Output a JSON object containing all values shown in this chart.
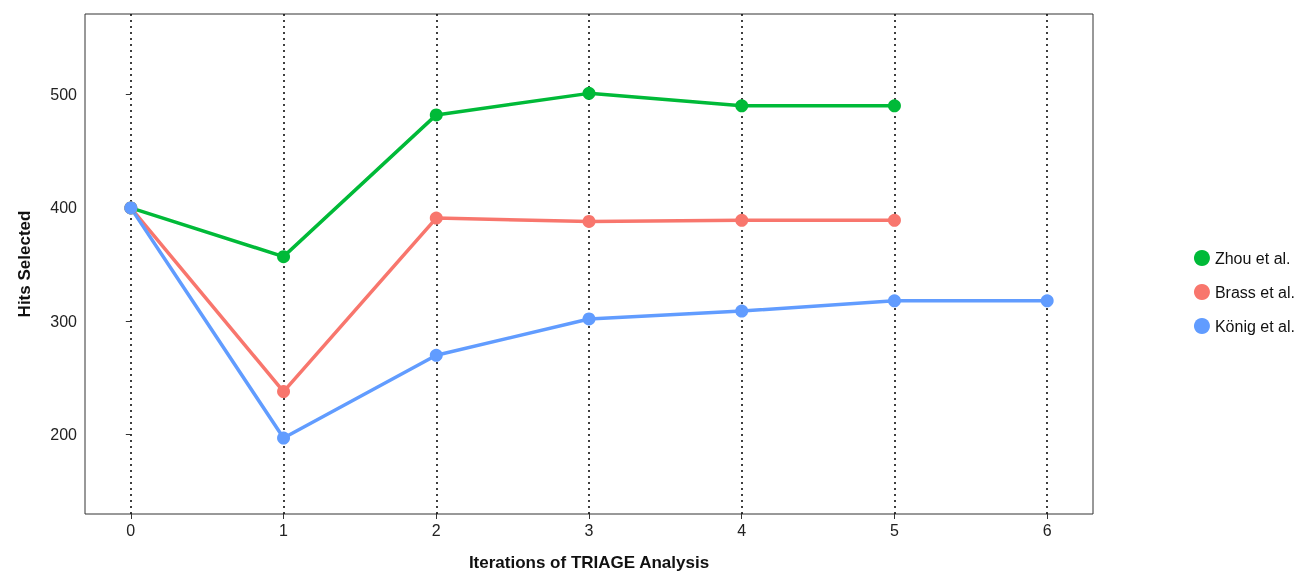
{
  "chart_data": {
    "type": "line",
    "xlabel": "Iterations of TRIAGE Analysis",
    "ylabel": "Hits Selected",
    "xlim": [
      -0.3,
      6.3
    ],
    "xticks": [
      0,
      1,
      2,
      3,
      4,
      5,
      6
    ],
    "ylim": [
      130,
      571
    ],
    "yticks": [
      200,
      300,
      400,
      500
    ],
    "grid": "x",
    "legend": "right",
    "marker": "circle",
    "line_style": "solid",
    "series": [
      {
        "name": "Zhou et al.",
        "color": "#00ba38",
        "x": [
          0,
          1,
          2,
          3,
          4,
          5
        ],
        "values": [
          400,
          357,
          482,
          501,
          490,
          490
        ]
      },
      {
        "name": "Brass et al.",
        "color": "#f8766d",
        "x": [
          0,
          1,
          2,
          3,
          4,
          5
        ],
        "values": [
          400,
          238,
          391,
          388,
          389,
          389
        ]
      },
      {
        "name": "König et al.",
        "color": "#619cff",
        "x": [
          0,
          1,
          2,
          3,
          4,
          5,
          6
        ],
        "values": [
          400,
          197,
          270,
          302,
          309,
          318,
          318
        ]
      }
    ]
  }
}
